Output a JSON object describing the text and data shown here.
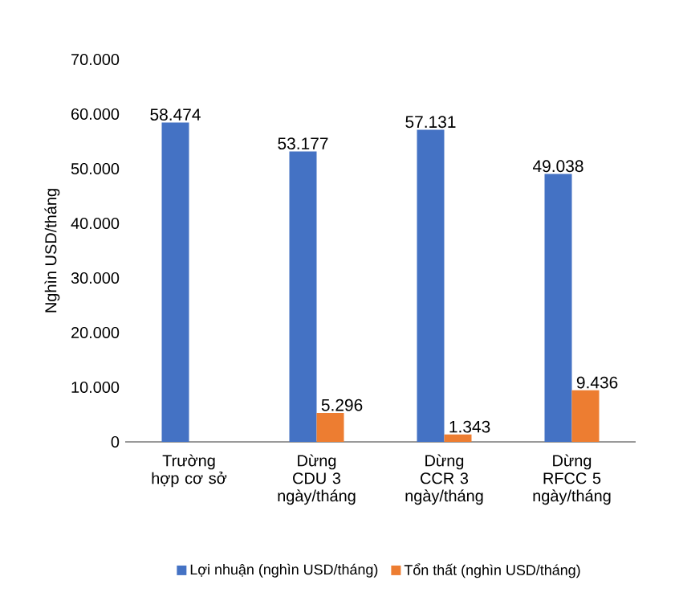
{
  "chart_data": {
    "type": "bar",
    "ylabel": "Nghìn USD/tháng",
    "categories": [
      "Trường hợp cơ sở",
      "Dừng CDU 3 ngày/tháng",
      "Dừng CCR 3 ngày/tháng",
      "Dừng RFCC 5 ngày/tháng"
    ],
    "series": [
      {
        "name": "Lợi nhuận (nghìn USD/tháng)",
        "color": "#4472c4",
        "values": [
          58474,
          53177,
          57131,
          49038
        ],
        "value_labels": [
          "58.474",
          "53.177",
          "57.131",
          "49.038"
        ]
      },
      {
        "name": "Tổn thất (nghìn USD/tháng)",
        "color": "#ed7d31",
        "values": [
          null,
          5296,
          1343,
          9436
        ],
        "value_labels": [
          null,
          "5.296",
          "1.343",
          "9.436"
        ]
      }
    ],
    "ylim": [
      0,
      70000
    ],
    "yticks": [
      0,
      {
        "value": 10000,
        "label": "10.000"
      },
      {
        "value": 20000,
        "label": "20.000"
      },
      {
        "value": 30000,
        "label": "30.000"
      },
      {
        "value": 40000,
        "label": "40.000"
      },
      {
        "value": 50000,
        "label": "50.000"
      },
      {
        "value": 60000,
        "label": "60.000"
      },
      {
        "value": 70000,
        "label": "70.000"
      }
    ],
    "grid": false,
    "legend": "bottom"
  }
}
